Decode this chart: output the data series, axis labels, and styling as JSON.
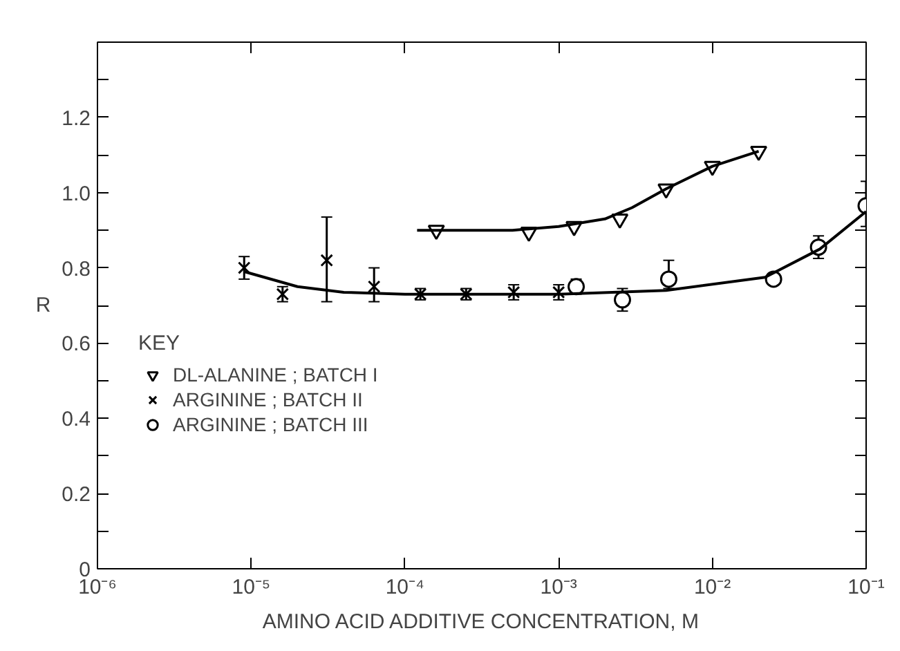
{
  "chart_data": {
    "type": "scatter",
    "xlabel": "AMINO ACID ADDITIVE CONCENTRATION, M",
    "ylabel": "R",
    "legend_title": "KEY",
    "legend": "left",
    "log": "x",
    "grid": false,
    "xlim": [
      1e-06,
      0.1
    ],
    "ylim": [
      0,
      1.4
    ],
    "xticks": [
      {
        "value": 1e-06,
        "label": "10⁻⁶"
      },
      {
        "value": 1e-05,
        "label": "10⁻⁵"
      },
      {
        "value": 0.0001,
        "label": "10⁻⁴"
      },
      {
        "value": 0.001,
        "label": "10⁻³"
      },
      {
        "value": 0.01,
        "label": "10⁻²"
      },
      {
        "value": 0.1,
        "label": "10⁻¹"
      }
    ],
    "yticks": [
      0,
      {
        "value": 0.1,
        "label": null
      },
      0.2,
      {
        "value": 0.3,
        "label": null
      },
      0.4,
      {
        "value": 0.5,
        "label": null
      },
      0.6,
      {
        "value": 0.7,
        "label": null
      },
      0.8,
      {
        "value": 0.9,
        "label": null
      },
      {
        "value": 1,
        "label": "1.0"
      },
      {
        "value": 1.1,
        "label": null
      },
      1.2,
      {
        "value": 1.3,
        "label": null
      }
    ],
    "series": [
      {
        "name": "DL-ALANINE ; BATCH I",
        "marker": "triangle",
        "color": "#000000",
        "x": [
          0.00016,
          0.00064,
          0.00126,
          0.0025,
          0.005,
          0.01,
          0.02
        ],
        "values": [
          0.9,
          0.895,
          0.91,
          0.93,
          1.01,
          1.07,
          1.11
        ]
      },
      {
        "name": "ARGININE ; BATCH II",
        "marker": "x",
        "color": "#000000",
        "x": [
          9e-06,
          1.6e-05,
          3.1e-05,
          6.3e-05,
          0.000126,
          0.00025,
          0.00051,
          0.001
        ],
        "values": [
          0.8,
          0.73,
          0.82,
          0.75,
          0.73,
          0.73,
          0.735,
          0.735
        ],
        "errors": [
          0.03,
          0.02,
          [
            0.71,
            0.935
          ],
          [
            0.71,
            0.8
          ],
          0.015,
          0.015,
          0.02,
          0.02
        ]
      },
      {
        "name": "ARGININE ; BATCH III",
        "marker": "circle",
        "color": "#000000",
        "x": [
          0.0013,
          0.0026,
          0.0052,
          0.025,
          0.049,
          0.1
        ],
        "values": [
          0.75,
          0.715,
          0.77,
          0.77,
          0.855,
          0.965
        ],
        "errors": [
          0.02,
          0.03,
          [
            0.745,
            0.82
          ],
          0.015,
          0.03,
          [
            0.91,
            1.03
          ]
        ]
      },
      {
        "type": "line",
        "color": "#000000",
        "x": [
          0.00012,
          0.0005,
          0.001,
          0.002,
          0.003,
          0.005,
          0.01,
          0.02
        ],
        "values": [
          0.9,
          0.9,
          0.91,
          0.93,
          0.96,
          1.01,
          1.07,
          1.11
        ]
      },
      {
        "type": "line",
        "color": "#000000",
        "x": [
          9e-06,
          2e-05,
          4e-05,
          0.0001,
          0.001,
          0.005,
          0.022,
          0.05,
          0.1
        ],
        "values": [
          0.79,
          0.75,
          0.735,
          0.73,
          0.73,
          0.74,
          0.775,
          0.85,
          0.95
        ]
      }
    ]
  }
}
